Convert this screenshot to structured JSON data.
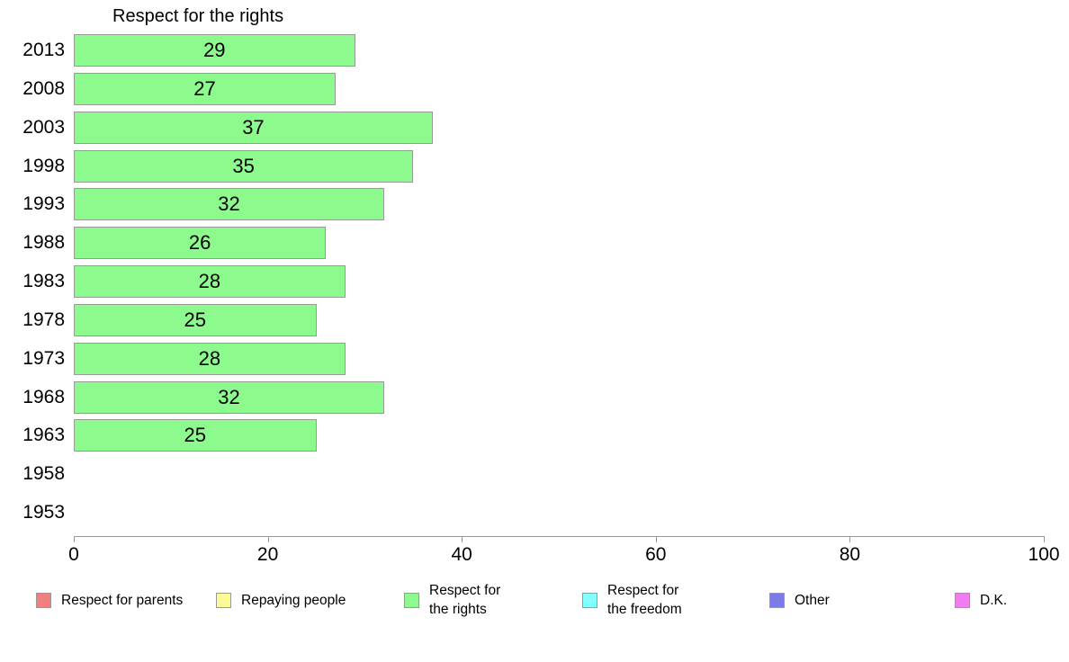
{
  "chart_data": {
    "type": "bar",
    "orientation": "horizontal",
    "title": "Respect for the rights",
    "series_name": "Respect for the rights",
    "categories": [
      "2013",
      "2008",
      "2003",
      "1998",
      "1993",
      "1988",
      "1983",
      "1978",
      "1973",
      "1968",
      "1963",
      "1958",
      "1953"
    ],
    "values": [
      29,
      27,
      37,
      35,
      32,
      26,
      28,
      25,
      28,
      32,
      25,
      null,
      null
    ],
    "xlabel": "",
    "ylabel": "",
    "xlim": [
      0,
      100
    ],
    "x_ticks": [
      0,
      20,
      40,
      60,
      80,
      100
    ],
    "grid": false,
    "data_labels": true,
    "bar_color": "#8cfa8c",
    "bar_border_color": "#999999",
    "legend_position": "bottom",
    "legend": [
      {
        "label": "Respect for parents",
        "color": "#f08080"
      },
      {
        "label": "Repaying people",
        "color": "#fbfb96"
      },
      {
        "label": "Respect for\nthe rights",
        "color": "#8cfa8c"
      },
      {
        "label": "Respect for\nthe freedom",
        "color": "#84ffff"
      },
      {
        "label": "Other",
        "color": "#7c7ce8"
      },
      {
        "label": "D.K.",
        "color": "#f07cf0"
      }
    ]
  },
  "layout_hints": {
    "legend_item_lefts": [
      40,
      240,
      449,
      647,
      855,
      1061
    ]
  }
}
